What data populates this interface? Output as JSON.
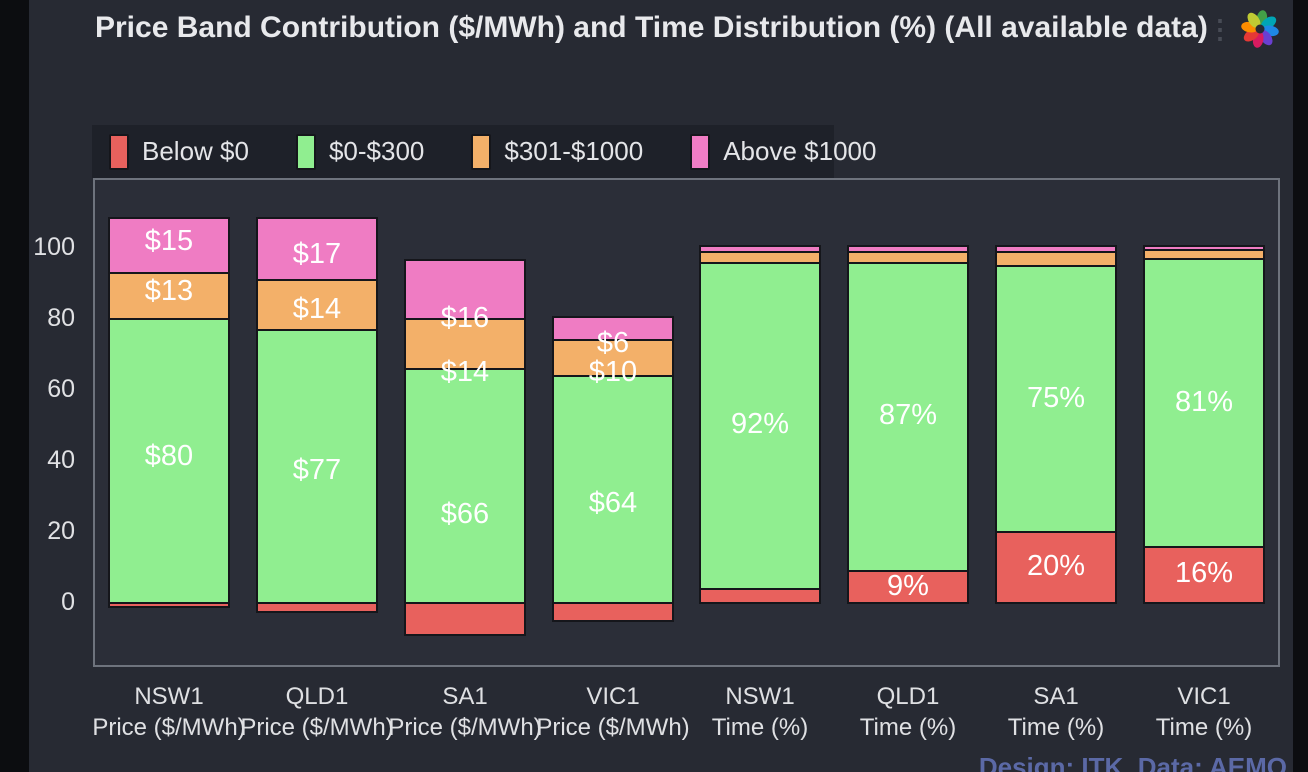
{
  "window": {
    "title": "Price Band Contribution ($/MWh) and Time Distribution (%) (All available data)",
    "kebab_glyph": "⋮",
    "attribution": "Design: ITK  Data: AEMO"
  },
  "colors": {
    "page_bg": "#272a33",
    "plot_bg": "#2b2e38",
    "legend_bg": "#1e2129",
    "plot_border": "#6e737d",
    "bar_outline": "#15161b",
    "text": "#e4e5e8",
    "attribution_text": "#5b69a6",
    "below_zero": "#E8615D",
    "band_0_300": "#90EE90",
    "band_301_1000": "#F3B069",
    "above_1000": "#EF7CC3"
  },
  "chart_data": {
    "type": "bar",
    "stacked": true,
    "title": "Price Band Contribution ($/MWh) and Time Distribution (%) (All available data)",
    "categories": [
      [
        "NSW1",
        "Price ($/MWh)"
      ],
      [
        "QLD1",
        "Price ($/MWh)"
      ],
      [
        "SA1",
        "Price ($/MWh)"
      ],
      [
        "VIC1",
        "Price ($/MWh)"
      ],
      [
        "NSW1",
        "Time (%)"
      ],
      [
        "QLD1",
        "Time (%)"
      ],
      [
        "SA1",
        "Time (%)"
      ],
      [
        "VIC1",
        "Time (%)"
      ]
    ],
    "series": [
      {
        "name": "Below $0",
        "color": "#E8615D",
        "values": [
          -1,
          -2.5,
          -9,
          -5,
          4,
          9,
          20,
          16
        ],
        "data_labels": [
          "",
          "",
          "",
          "",
          "",
          "9%",
          "20%",
          "16%"
        ]
      },
      {
        "name": "$0-$300",
        "color": "#90EE90",
        "values": [
          80,
          77,
          66,
          64,
          92,
          87,
          75,
          81
        ],
        "data_labels": [
          "$80",
          "$77",
          "$66",
          "$64",
          "92%",
          "87%",
          "75%",
          "81%"
        ]
      },
      {
        "name": "$301-$1000",
        "color": "#F3B069",
        "values": [
          13,
          14,
          14,
          10,
          3,
          3,
          4,
          2.5
        ],
        "data_labels": [
          "$13",
          "$14",
          "$14",
          "$10",
          "",
          "",
          "",
          ""
        ]
      },
      {
        "name": "Above $1000",
        "color": "#EF7CC3",
        "values": [
          15,
          17,
          16,
          6,
          1,
          1,
          1,
          0.5
        ],
        "data_labels": [
          "$15",
          "$17",
          "$16",
          "$6",
          "",
          "",
          "",
          ""
        ]
      }
    ],
    "yticks": [
      0,
      20,
      40,
      60,
      80,
      100
    ],
    "ylim": [
      -18,
      119
    ],
    "grid": false,
    "legend_position": "top-left",
    "label_dy": [
      -4,
      5,
      29,
      15,
      0,
      0,
      0,
      0
    ]
  }
}
